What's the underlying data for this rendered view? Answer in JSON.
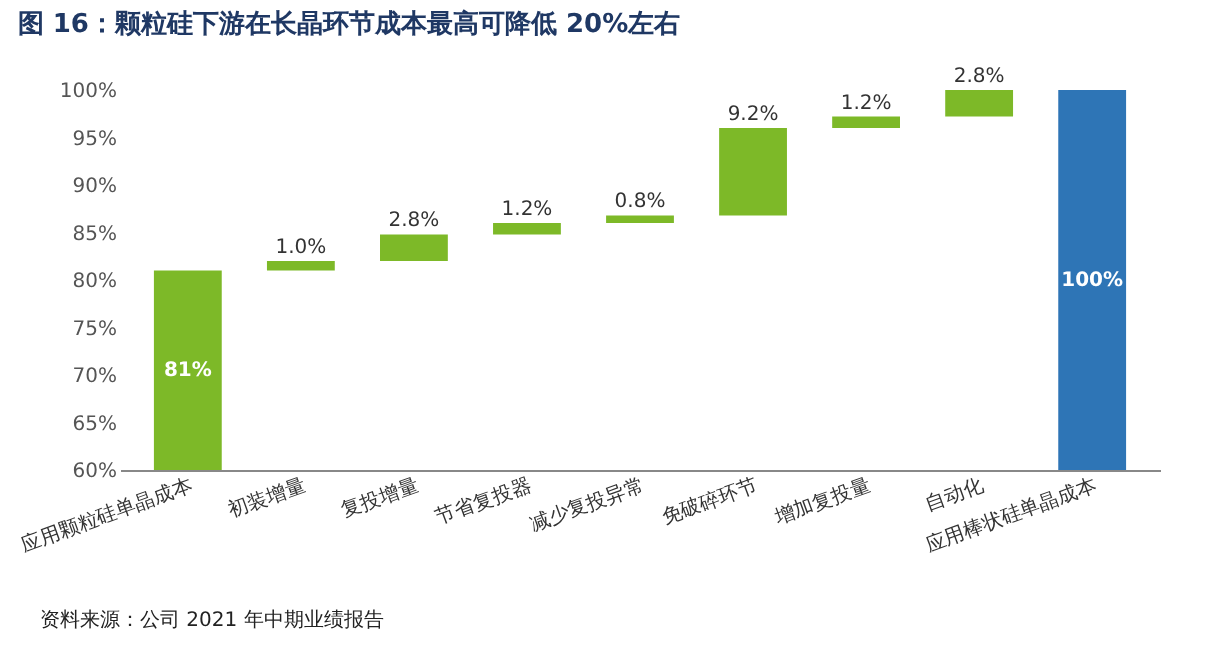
{
  "chart_data": {
    "type": "bar",
    "title": "图 16：颗粒硅下游在长晶环节成本最高可降低 20%左右",
    "categories": [
      "应用颗粒硅单晶成本",
      "初装增量",
      "复投增量",
      "节省复投器",
      "减少复投异常",
      "免破碎环节",
      "增加复投量",
      "自动化",
      "应用棒状硅单晶成本"
    ],
    "values": [
      81,
      1.0,
      2.8,
      1.2,
      0.8,
      9.2,
      1.2,
      2.8,
      100
    ],
    "base": [
      null,
      81,
      82,
      84.8,
      86,
      86.8,
      96,
      97.2,
      null
    ],
    "colors": [
      "#7db928",
      "#7db928",
      "#7db928",
      "#7db928",
      "#7db928",
      "#7db928",
      "#7db928",
      "#7db928",
      "#2e75b6"
    ],
    "value_labels": [
      "81%",
      "1.0%",
      "2.8%",
      "1.2%",
      "0.8%",
      "9.2%",
      "1.2%",
      "2.8%",
      "100%"
    ],
    "ylim": [
      60,
      100
    ],
    "yticks": [
      {
        "value": 60,
        "label": "60%"
      },
      {
        "value": 65,
        "label": "65%"
      },
      {
        "value": 70,
        "label": "70%"
      },
      {
        "value": 75,
        "label": "75%"
      },
      {
        "value": 80,
        "label": "80%"
      },
      {
        "value": 85,
        "label": "85%"
      },
      {
        "value": 90,
        "label": "90%"
      },
      {
        "value": 95,
        "label": "95%"
      },
      {
        "value": 100,
        "label": "100%"
      }
    ],
    "annotations": [
      "资料来源：公司 2021 年中期业绩报告"
    ]
  }
}
